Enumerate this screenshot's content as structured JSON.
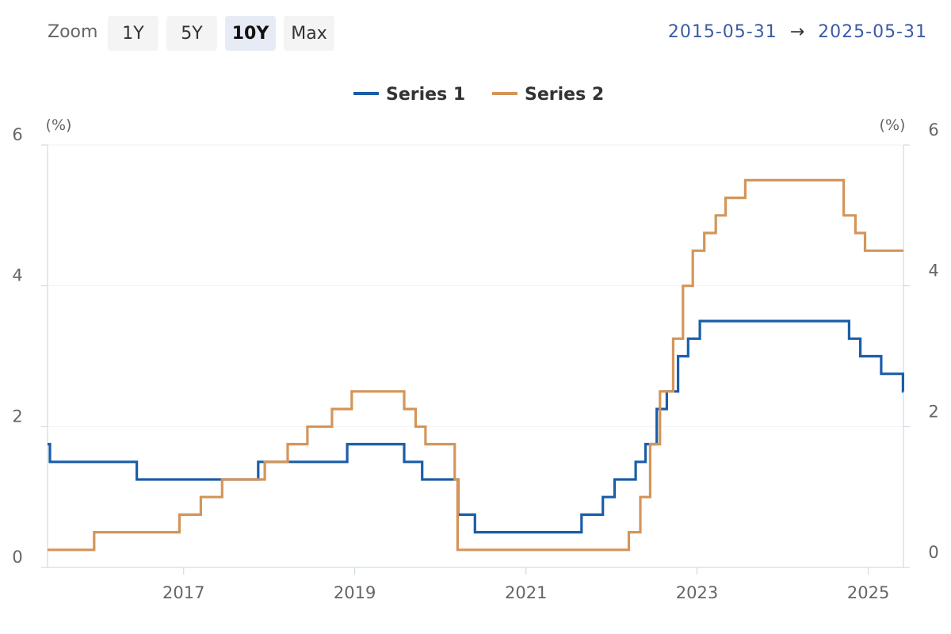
{
  "toolbar": {
    "zoom_label": "Zoom",
    "buttons": [
      {
        "label": "1Y",
        "active": false
      },
      {
        "label": "5Y",
        "active": false
      },
      {
        "label": "10Y",
        "active": true
      },
      {
        "label": "Max",
        "active": false
      }
    ],
    "range_start": "2015-05-31",
    "range_arrow": "→",
    "range_end": "2025-05-31"
  },
  "chart_data": {
    "type": "line",
    "step": true,
    "x_range": [
      "2015-05-31",
      "2025-05-31"
    ],
    "ylim": [
      0,
      6
    ],
    "y_ticks": [
      0,
      2,
      4,
      6
    ],
    "y_unit_left": "(%)",
    "y_unit_right": "(%)",
    "x_ticks": [
      "2017",
      "2019",
      "2021",
      "2023",
      "2025"
    ],
    "legend_position": "top-center",
    "series": [
      {
        "name": "Series 1",
        "color": "#1a5ea8",
        "points": [
          [
            "2015-05-31",
            1.75
          ],
          [
            "2015-06-10",
            1.5
          ],
          [
            "2016-06-15",
            1.25
          ],
          [
            "2017-11-15",
            1.5
          ],
          [
            "2018-11-30",
            1.75
          ],
          [
            "2019-07-31",
            1.5
          ],
          [
            "2019-10-16",
            1.25
          ],
          [
            "2020-03-17",
            0.75
          ],
          [
            "2020-05-28",
            0.5
          ],
          [
            "2021-08-26",
            0.75
          ],
          [
            "2021-11-25",
            1.0
          ],
          [
            "2022-01-14",
            1.25
          ],
          [
            "2022-04-14",
            1.5
          ],
          [
            "2022-05-26",
            1.75
          ],
          [
            "2022-07-13",
            2.25
          ],
          [
            "2022-08-25",
            2.5
          ],
          [
            "2022-10-12",
            3.0
          ],
          [
            "2022-11-24",
            3.25
          ],
          [
            "2023-01-13",
            3.5
          ],
          [
            "2024-10-11",
            3.25
          ],
          [
            "2024-11-28",
            3.0
          ],
          [
            "2025-02-25",
            2.75
          ],
          [
            "2025-05-29",
            2.5
          ]
        ]
      },
      {
        "name": "Series 2",
        "color": "#d4955a",
        "points": [
          [
            "2015-05-31",
            0.25
          ],
          [
            "2015-12-16",
            0.5
          ],
          [
            "2016-12-14",
            0.75
          ],
          [
            "2017-03-15",
            1.0
          ],
          [
            "2017-06-14",
            1.25
          ],
          [
            "2017-12-13",
            1.5
          ],
          [
            "2018-03-21",
            1.75
          ],
          [
            "2018-06-13",
            2.0
          ],
          [
            "2018-09-26",
            2.25
          ],
          [
            "2018-12-19",
            2.5
          ],
          [
            "2019-07-31",
            2.25
          ],
          [
            "2019-09-18",
            2.0
          ],
          [
            "2019-10-30",
            1.75
          ],
          [
            "2020-03-03",
            1.25
          ],
          [
            "2020-03-15",
            0.25
          ],
          [
            "2022-03-16",
            0.5
          ],
          [
            "2022-05-04",
            1.0
          ],
          [
            "2022-06-15",
            1.75
          ],
          [
            "2022-07-27",
            2.5
          ],
          [
            "2022-09-21",
            3.25
          ],
          [
            "2022-11-02",
            4.0
          ],
          [
            "2022-12-14",
            4.5
          ],
          [
            "2023-02-01",
            4.75
          ],
          [
            "2023-03-22",
            5.0
          ],
          [
            "2023-05-03",
            5.25
          ],
          [
            "2023-07-26",
            5.5
          ],
          [
            "2024-09-18",
            5.0
          ],
          [
            "2024-11-07",
            4.75
          ],
          [
            "2024-12-18",
            4.5
          ],
          [
            "2025-05-31",
            4.5
          ]
        ]
      }
    ]
  }
}
